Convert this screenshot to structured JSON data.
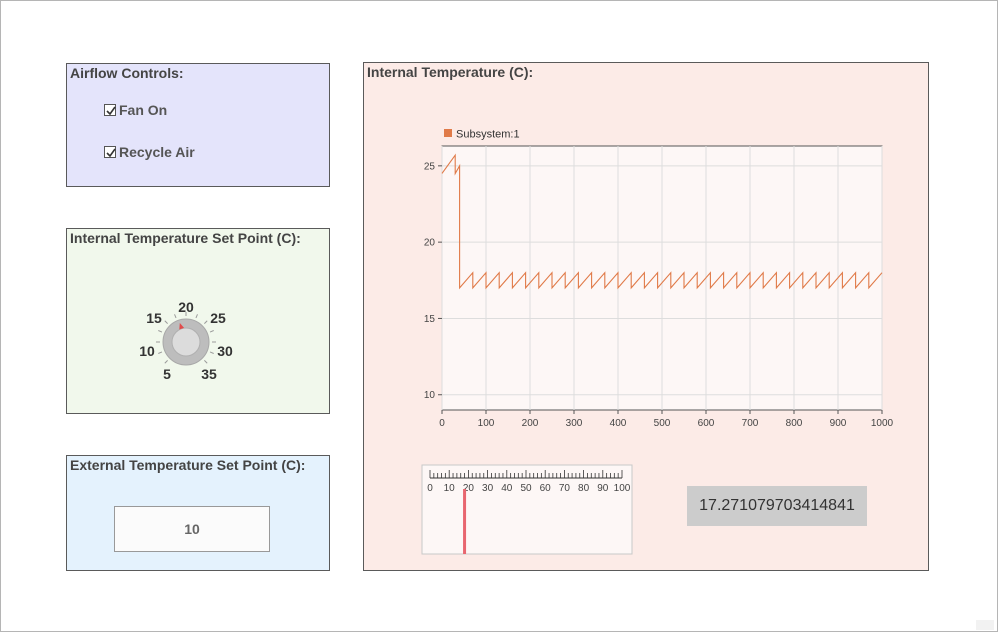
{
  "airflow": {
    "title": "Airflow Controls:",
    "fan_on": {
      "label": "Fan On",
      "checked": true
    },
    "recycle_air": {
      "label": "Recycle Air",
      "checked": true
    }
  },
  "setpoint": {
    "title": "Internal Temperature Set Point (C):",
    "knob_labels": [
      "5",
      "10",
      "15",
      "20",
      "25",
      "30",
      "35"
    ],
    "knob_value": 18
  },
  "external": {
    "title": "External Temperature Set Point (C):",
    "value": "10"
  },
  "chart_panel": {
    "title": "Internal Temperature (C):",
    "readout": "17.271079703414841",
    "gauge": {
      "min": 0,
      "max": 100,
      "value": 18,
      "labels": [
        "0",
        "10",
        "20",
        "30",
        "40",
        "50",
        "60",
        "70",
        "80",
        "90",
        "100"
      ]
    }
  },
  "chart_data": {
    "type": "line",
    "series": [
      {
        "name": "Subsystem:1",
        "color": "#e07a48"
      }
    ],
    "xlim": [
      0,
      1000
    ],
    "ylim": [
      9,
      26.3
    ],
    "xticks": [
      "0",
      "100",
      "200",
      "300",
      "400",
      "500",
      "600",
      "700",
      "800",
      "900",
      "1000"
    ],
    "yticks": [
      "10",
      "15",
      "20",
      "25"
    ],
    "grid": true,
    "legend": "top-left",
    "pattern": {
      "start": [
        0,
        24.5
      ],
      "initial": [
        [
          30,
          25.7
        ],
        [
          30,
          24.5
        ],
        [
          40,
          25.0
        ],
        [
          40,
          17.0
        ]
      ],
      "cycle_low": 17.0,
      "cycle_high": 18.0,
      "cycle_period": 30
    }
  }
}
